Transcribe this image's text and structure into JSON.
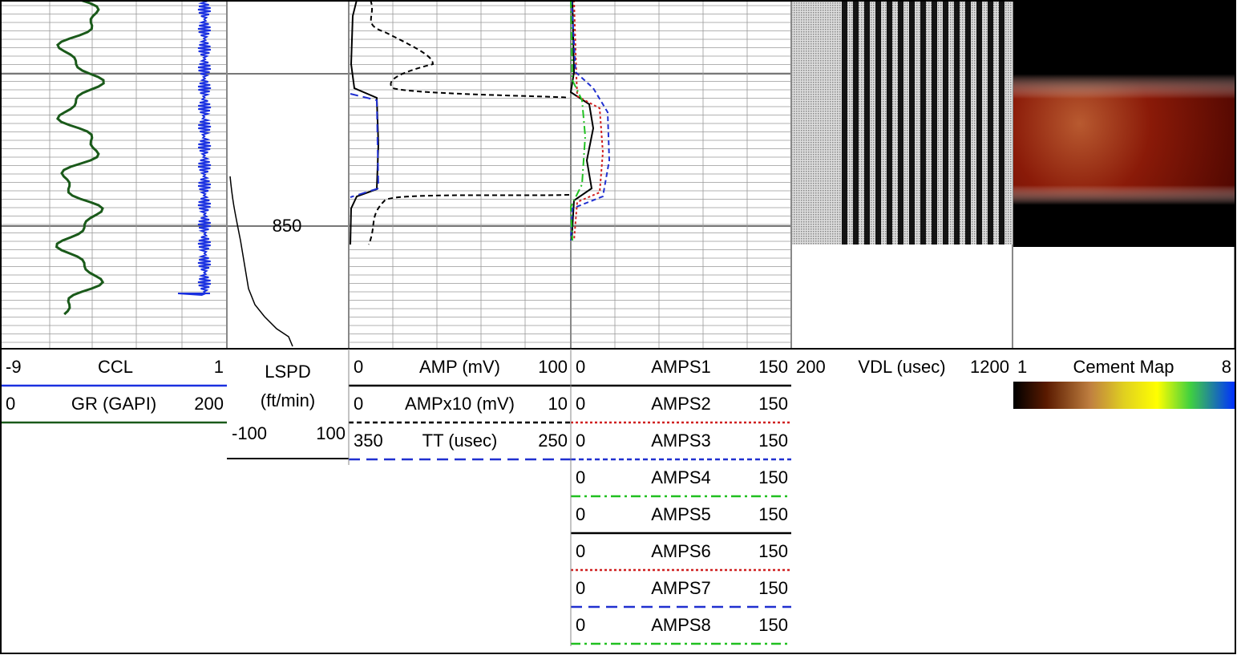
{
  "tracks": [
    {
      "curves": [
        {
          "min": "-9",
          "name": "CCL",
          "max": "1"
        },
        {
          "min": "0",
          "name": "GR (GAPI)",
          "max": "200"
        }
      ]
    },
    {
      "curves": [
        {
          "name_lines": [
            "LSPD",
            "(ft/min)"
          ],
          "min": "-100",
          "max": "100"
        }
      ]
    },
    {
      "curves": [
        {
          "min": "0",
          "name": "AMP (mV)",
          "max": "100"
        },
        {
          "min": "0",
          "name": "AMPx10 (mV)",
          "max": "10"
        },
        {
          "min": "350",
          "name": "TT (usec)",
          "max": "250"
        }
      ]
    },
    {
      "curves": [
        {
          "min": "0",
          "name": "AMPS1",
          "max": "150"
        },
        {
          "min": "0",
          "name": "AMPS2",
          "max": "150"
        },
        {
          "min": "0",
          "name": "AMPS3",
          "max": "150"
        },
        {
          "min": "0",
          "name": "AMPS4",
          "max": "150"
        },
        {
          "min": "0",
          "name": "AMPS5",
          "max": "150"
        },
        {
          "min": "0",
          "name": "AMPS6",
          "max": "150"
        },
        {
          "min": "0",
          "name": "AMPS7",
          "max": "150"
        },
        {
          "min": "0",
          "name": "AMPS8",
          "max": "150"
        }
      ]
    },
    {
      "curves": [
        {
          "min": "200",
          "name": "VDL (usec)",
          "max": "1200"
        }
      ]
    },
    {
      "curves": [
        {
          "min": "1",
          "name": "Cement Map",
          "max": "8"
        }
      ]
    }
  ],
  "depth_label": "850"
}
